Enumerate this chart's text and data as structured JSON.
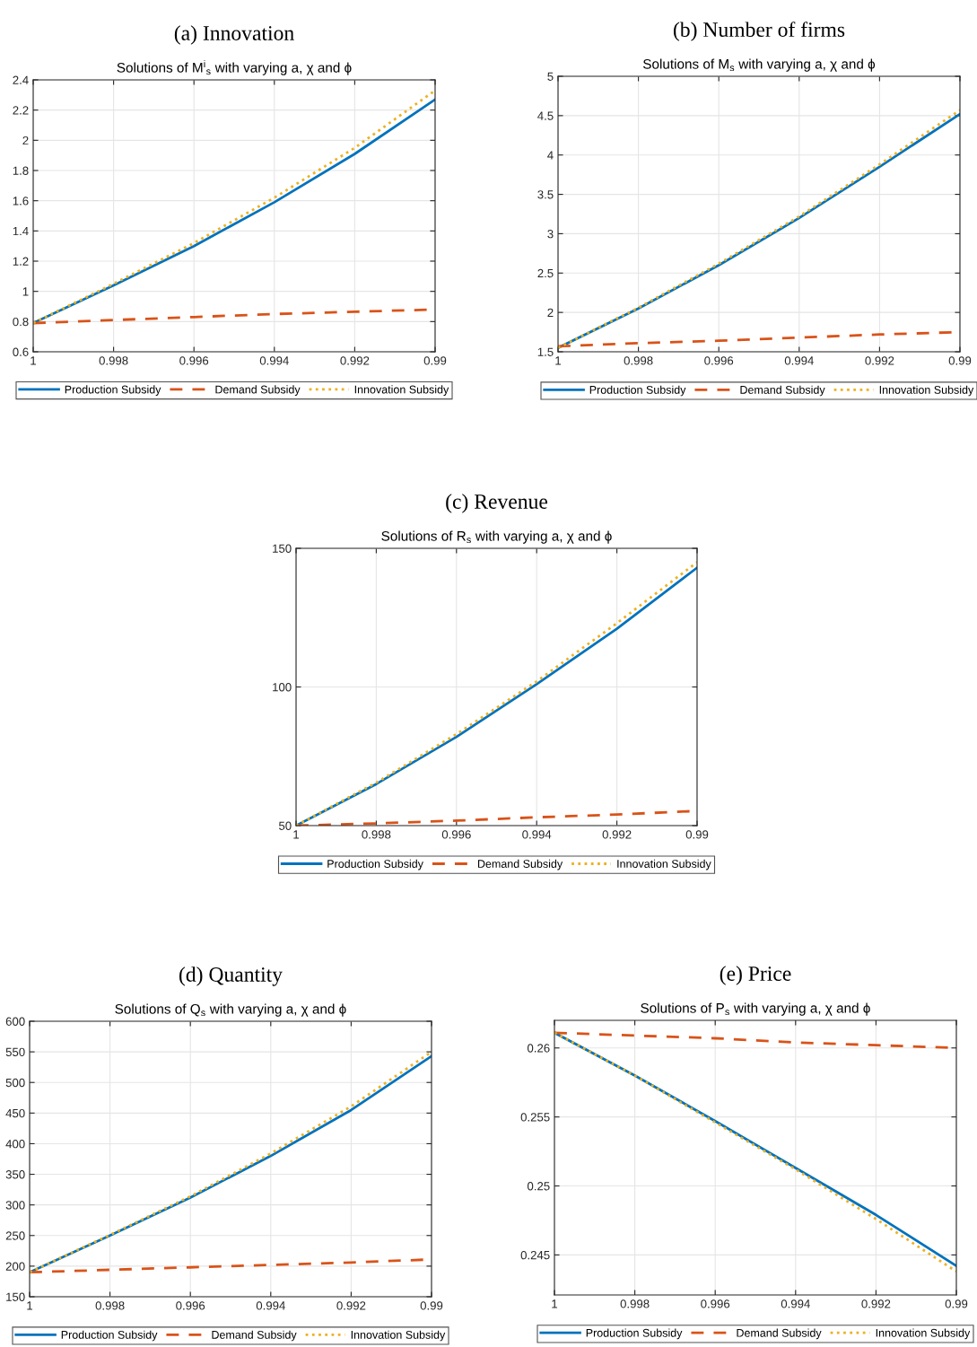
{
  "chart_data": [
    {
      "type": "line",
      "title": "(a) Innovation",
      "subtitle": "Solutions of M$^{i}$$_{s}$ with varying a, χ and ϕ",
      "x": [
        1,
        0.998,
        0.996,
        0.994,
        0.992,
        0.99
      ],
      "xlim": [
        1,
        0.99
      ],
      "xticks": [
        1,
        0.998,
        0.996,
        0.994,
        0.992,
        0.99
      ],
      "ylim": [
        0.6,
        2.4
      ],
      "yticks": [
        0.6,
        0.8,
        1,
        1.2,
        1.4,
        1.6,
        1.8,
        2,
        2.2,
        2.4
      ],
      "grid": true,
      "legend": "bottom",
      "series": [
        {
          "name": "Production Subsidy",
          "color": "#0072bd",
          "line_style": "solid",
          "values": [
            0.79,
            1.04,
            1.3,
            1.59,
            1.91,
            2.27
          ]
        },
        {
          "name": "Demand Subsidy",
          "color": "#d95319",
          "line_style": "dashed",
          "values": [
            0.79,
            0.81,
            0.83,
            0.85,
            0.865,
            0.88
          ]
        },
        {
          "name": "Innovation Subsidy",
          "color": "#edb120",
          "line_style": "dotted",
          "values": [
            0.79,
            1.05,
            1.32,
            1.62,
            1.95,
            2.33
          ]
        }
      ]
    },
    {
      "type": "line",
      "title": "(b) Number of firms",
      "subtitle": "Solutions of M$_{s}$ with varying a, χ and ϕ",
      "x": [
        1,
        0.998,
        0.996,
        0.994,
        0.992,
        0.99
      ],
      "xlim": [
        1,
        0.99
      ],
      "xticks": [
        1,
        0.998,
        0.996,
        0.994,
        0.992,
        0.99
      ],
      "ylim": [
        1.5,
        5
      ],
      "yticks": [
        1.5,
        2,
        2.5,
        3,
        3.5,
        4,
        4.5,
        5
      ],
      "grid": true,
      "legend": "bottom",
      "series": [
        {
          "name": "Production Subsidy",
          "color": "#0072bd",
          "line_style": "solid",
          "values": [
            1.55,
            2.05,
            2.6,
            3.2,
            3.85,
            4.52
          ]
        },
        {
          "name": "Demand Subsidy",
          "color": "#d95319",
          "line_style": "dashed",
          "values": [
            1.57,
            1.61,
            1.64,
            1.68,
            1.72,
            1.75
          ]
        },
        {
          "name": "Innovation Subsidy",
          "color": "#edb120",
          "line_style": "dotted",
          "values": [
            1.55,
            2.06,
            2.62,
            3.22,
            3.88,
            4.57
          ]
        }
      ]
    },
    {
      "type": "line",
      "title": "(c) Revenue",
      "subtitle": "Solutions of R$_{s}$ with varying a, χ and ϕ",
      "x": [
        1,
        0.998,
        0.996,
        0.994,
        0.992,
        0.99
      ],
      "xlim": [
        1,
        0.99
      ],
      "xticks": [
        1,
        0.998,
        0.996,
        0.994,
        0.992,
        0.99
      ],
      "ylim": [
        50,
        150
      ],
      "yticks": [
        50,
        100,
        150
      ],
      "grid": true,
      "legend": "bottom",
      "series": [
        {
          "name": "Production Subsidy",
          "color": "#0072bd",
          "line_style": "solid",
          "values": [
            50,
            65,
            82,
            101,
            121,
            143
          ]
        },
        {
          "name": "Demand Subsidy",
          "color": "#d95319",
          "line_style": "dashed",
          "values": [
            50,
            50.8,
            51.8,
            53,
            54,
            55.3
          ]
        },
        {
          "name": "Innovation Subsidy",
          "color": "#edb120",
          "line_style": "dotted",
          "values": [
            50,
            65.5,
            83,
            102,
            123,
            145
          ]
        }
      ]
    },
    {
      "type": "line",
      "title": "(d) Quantity",
      "subtitle": "Solutions of Q$_{s}$ with varying a, χ and ϕ",
      "x": [
        1,
        0.998,
        0.996,
        0.994,
        0.992,
        0.99
      ],
      "xlim": [
        1,
        0.99
      ],
      "xticks": [
        1,
        0.998,
        0.996,
        0.994,
        0.992,
        0.99
      ],
      "ylim": [
        150,
        600
      ],
      "yticks": [
        150,
        200,
        250,
        300,
        350,
        400,
        450,
        500,
        550,
        600
      ],
      "grid": true,
      "legend": "bottom",
      "series": [
        {
          "name": "Production Subsidy",
          "color": "#0072bd",
          "line_style": "solid",
          "values": [
            190,
            250,
            312,
            380,
            455,
            543
          ]
        },
        {
          "name": "Demand Subsidy",
          "color": "#d95319",
          "line_style": "dashed",
          "values": [
            190,
            194,
            198,
            202,
            206,
            211
          ]
        },
        {
          "name": "Innovation Subsidy",
          "color": "#edb120",
          "line_style": "dotted",
          "values": [
            190,
            251,
            314,
            384,
            461,
            550
          ]
        }
      ]
    },
    {
      "type": "line",
      "title": "(e) Price",
      "subtitle": "Solutions of P$_{s}$ with varying a, χ and ϕ",
      "x": [
        1,
        0.998,
        0.996,
        0.994,
        0.992,
        0.99
      ],
      "xlim": [
        1,
        0.99
      ],
      "xticks": [
        1,
        0.998,
        0.996,
        0.994,
        0.992,
        0.99
      ],
      "ylim": [
        0.2421,
        0.262
      ],
      "yticks": [
        0.245,
        0.25,
        0.255,
        0.26
      ],
      "grid": true,
      "legend": "bottom",
      "series": [
        {
          "name": "Production Subsidy",
          "color": "#0072bd",
          "line_style": "solid",
          "values": [
            0.2611,
            0.258,
            0.2547,
            0.2513,
            0.2479,
            0.2442
          ]
        },
        {
          "name": "Demand Subsidy",
          "color": "#d95319",
          "line_style": "dashed",
          "values": [
            0.2611,
            0.2609,
            0.2607,
            0.2604,
            0.2602,
            0.26
          ]
        },
        {
          "name": "Innovation Subsidy",
          "color": "#edb120",
          "line_style": "dotted",
          "values": [
            0.2611,
            0.258,
            0.2546,
            0.2512,
            0.2476,
            0.2438
          ]
        }
      ]
    }
  ]
}
